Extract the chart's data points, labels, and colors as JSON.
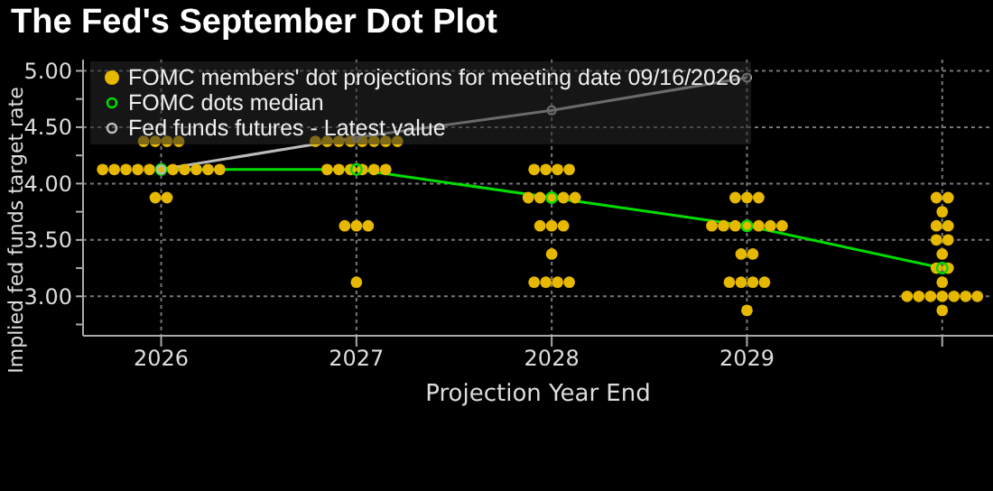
{
  "chart_data": {
    "type": "scatter",
    "title": "The Fed's September Dot Plot",
    "xlabel": "Projection Year End",
    "ylabel": "Implied fed funds target rate",
    "xlim": [
      2025.6,
      2030.26
    ],
    "xticks": [
      {
        "value": 2026,
        "label": "2026"
      },
      {
        "value": 2027,
        "label": "2027"
      },
      {
        "value": 2028,
        "label": "2028"
      },
      {
        "value": 2029,
        "label": "2029"
      },
      {
        "value": 2030,
        "label": null
      }
    ],
    "ylim": [
      2.65,
      5.1
    ],
    "yticks": [
      {
        "value": 2.75,
        "label": null
      },
      {
        "value": 3,
        "label": "3.00"
      },
      {
        "value": 3.25,
        "label": null
      },
      {
        "value": 3.5,
        "label": "3.50"
      },
      {
        "value": 3.75,
        "label": null
      },
      {
        "value": 4,
        "label": "4.00"
      },
      {
        "value": 4.25,
        "label": null
      },
      {
        "value": 4.5,
        "label": "4.50"
      },
      {
        "value": 4.75,
        "label": null
      },
      {
        "value": 5,
        "label": "5.00"
      }
    ],
    "grid": true,
    "legend": "top left",
    "marker": "circle",
    "series": [
      {
        "name": "FOMC members' dot projections for meeting date 09/16/2026",
        "color": "#e6b800",
        "x": [
          2025.91,
          2025.97,
          2026.03,
          2026.09,
          2025.7,
          2025.76,
          2025.82,
          2025.88,
          2025.94,
          2026,
          2026.06,
          2026.12,
          2026.18,
          2026.24,
          2026.3,
          2025.97,
          2026.03,
          2026.79,
          2026.85,
          2026.91,
          2026.97,
          2027.03,
          2027.09,
          2027.15,
          2027.21,
          2026.85,
          2026.91,
          2026.97,
          2027.03,
          2027.09,
          2027.15,
          2026.94,
          2027,
          2027.06,
          2027,
          2027.91,
          2027.97,
          2028.03,
          2028.09,
          2027.88,
          2027.94,
          2028,
          2028.06,
          2028.12,
          2027.94,
          2028,
          2028.06,
          2028,
          2027.91,
          2027.97,
          2028.03,
          2028.09,
          2028.94,
          2029,
          2029.06,
          2028.82,
          2028.88,
          2028.94,
          2029,
          2029.06,
          2029.12,
          2029.18,
          2028.97,
          2029.03,
          2028.91,
          2028.97,
          2029.03,
          2029.09,
          2029,
          2029.97,
          2030.03,
          2030,
          2029.97,
          2030.03,
          2029.97,
          2030.03,
          2030,
          2029.97,
          2030.03,
          2030,
          2029.82,
          2029.88,
          2029.94,
          2030,
          2030.06,
          2030.12,
          2030.18,
          2030
        ],
        "values": [
          4.375,
          4.375,
          4.375,
          4.375,
          4.125,
          4.125,
          4.125,
          4.125,
          4.125,
          4.125,
          4.125,
          4.125,
          4.125,
          4.125,
          4.125,
          3.875,
          3.875,
          4.375,
          4.375,
          4.375,
          4.375,
          4.375,
          4.375,
          4.375,
          4.375,
          4.125,
          4.125,
          4.125,
          4.125,
          4.125,
          4.125,
          3.625,
          3.625,
          3.625,
          3.125,
          4.125,
          4.125,
          4.125,
          4.125,
          3.875,
          3.875,
          3.875,
          3.875,
          3.875,
          3.625,
          3.625,
          3.625,
          3.375,
          3.125,
          3.125,
          3.125,
          3.125,
          3.875,
          3.875,
          3.875,
          3.625,
          3.625,
          3.625,
          3.625,
          3.625,
          3.625,
          3.625,
          3.375,
          3.375,
          3.125,
          3.125,
          3.125,
          3.125,
          2.875,
          3.875,
          3.875,
          3.75,
          3.625,
          3.625,
          3.5,
          3.5,
          3.375,
          3.25,
          3.25,
          3.125,
          3,
          3,
          3,
          3,
          3,
          3,
          3,
          2.875
        ]
      },
      {
        "name": "FOMC dots median",
        "type": "line",
        "color": "#00dd00",
        "x": [
          2026,
          2027,
          2028,
          2029,
          2030
        ],
        "values": [
          4.125,
          4.125,
          3.875,
          3.625,
          3.25
        ]
      },
      {
        "name": "Fed funds futures - Latest value",
        "type": "line",
        "color": "#bbbbbb",
        "x": [
          2026,
          2027,
          2028,
          2029
        ],
        "values": [
          4.125,
          4.41,
          4.65,
          4.94
        ]
      }
    ]
  }
}
